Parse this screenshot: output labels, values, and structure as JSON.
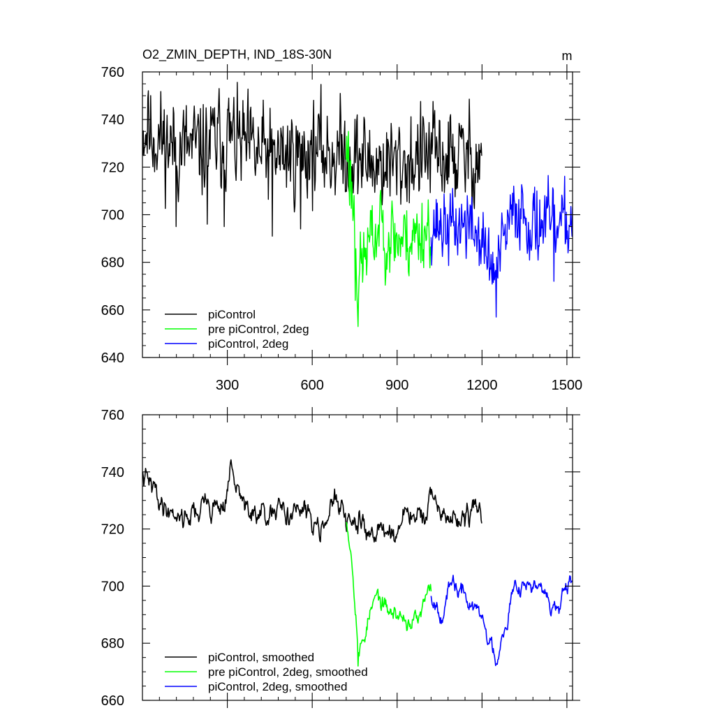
{
  "figure": {
    "title": "O2_ZMIN_DEPTH, IND_18S-30N",
    "units": "m"
  },
  "chart_data": [
    {
      "type": "line",
      "title": "O2_ZMIN_DEPTH, IND_18S-30N",
      "units": "m",
      "xlim": [
        0,
        1520
      ],
      "ylim": [
        640,
        760
      ],
      "x_ticks": [
        300,
        600,
        900,
        1200,
        1500
      ],
      "y_ticks": [
        640,
        660,
        680,
        700,
        720,
        740,
        760
      ],
      "legend_position": "bottom-left",
      "series": [
        {
          "name": "piControl",
          "color": "#000000",
          "x_range": [
            1,
            1200
          ],
          "mean": 727,
          "noise": 9.5,
          "seed": 11,
          "anchors": [
            [
              1,
              737
            ],
            [
              100,
              729
            ],
            [
              200,
              727
            ],
            [
              300,
              733
            ],
            [
              400,
              725
            ],
            [
              500,
              725
            ],
            [
              600,
              727
            ],
            [
              700,
              726
            ],
            [
              800,
              722
            ],
            [
              900,
              721
            ],
            [
              1000,
              725
            ],
            [
              1100,
              724
            ],
            [
              1200,
              724
            ]
          ],
          "spikes": [
            [
              120,
              695
            ],
            [
              230,
              696
            ],
            [
              290,
              695
            ],
            [
              460,
              691
            ],
            [
              560,
              694
            ],
            [
              305,
              749
            ],
            [
              20,
              749
            ]
          ]
        },
        {
          "name": "pre piControl, 2deg",
          "color": "#00ff00",
          "x_range": [
            720,
            1020
          ],
          "noise": 7.5,
          "seed": 23,
          "anchors": [
            [
              720,
              728
            ],
            [
              735,
              716
            ],
            [
              750,
              698
            ],
            [
              760,
              674
            ],
            [
              775,
              678
            ],
            [
              790,
              685
            ],
            [
              820,
              691
            ],
            [
              850,
              694
            ],
            [
              900,
              690
            ],
            [
              950,
              690
            ],
            [
              1000,
              694
            ],
            [
              1020,
              697
            ]
          ],
          "spikes": [
            [
              752,
              664
            ],
            [
              763,
              653
            ],
            [
              728,
              735
            ],
            [
              840,
              708
            ]
          ]
        },
        {
          "name": "piControl, 2deg",
          "color": "#0000ff",
          "x_range": [
            1020,
            1520
          ],
          "noise": 7,
          "seed": 37,
          "anchors": [
            [
              1020,
              697
            ],
            [
              1080,
              694
            ],
            [
              1140,
              696
            ],
            [
              1190,
              691
            ],
            [
              1230,
              679
            ],
            [
              1250,
              675
            ],
            [
              1280,
              690
            ],
            [
              1310,
              700
            ],
            [
              1340,
              703
            ],
            [
              1380,
              695
            ],
            [
              1420,
              697
            ],
            [
              1470,
              693
            ],
            [
              1520,
              699
            ]
          ],
          "spikes": [
            [
              1250,
              657
            ],
            [
              1395,
              710
            ],
            [
              1148,
              708
            ],
            [
              1455,
              672
            ]
          ]
        }
      ]
    },
    {
      "type": "line",
      "title": "",
      "xlim": [
        0,
        1520
      ],
      "ylim": [
        660,
        760
      ],
      "x_ticks": [
        300,
        600,
        900,
        1200,
        1500
      ],
      "y_ticks": [
        660,
        680,
        700,
        720,
        740,
        760
      ],
      "legend_position": "bottom-left",
      "series": [
        {
          "name": "piControl, smoothed",
          "color": "#000000",
          "x_range": [
            1,
            1200
          ],
          "noise": 4.5,
          "seed": 41,
          "anchors": [
            [
              1,
              738
            ],
            [
              40,
              733
            ],
            [
              80,
              728
            ],
            [
              150,
              725
            ],
            [
              220,
              728
            ],
            [
              290,
              729
            ],
            [
              310,
              741
            ],
            [
              340,
              731
            ],
            [
              400,
              724
            ],
            [
              460,
              723
            ],
            [
              530,
              728
            ],
            [
              600,
              722
            ],
            [
              680,
              729
            ],
            [
              720,
              722
            ],
            [
              800,
              720
            ],
            [
              870,
              719
            ],
            [
              950,
              724
            ],
            [
              1000,
              725
            ],
            [
              1050,
              727
            ],
            [
              1100,
              722
            ],
            [
              1150,
              725
            ],
            [
              1200,
              726
            ]
          ],
          "spikes": []
        },
        {
          "name": "pre piControl, 2deg, smoothed",
          "color": "#00ff00",
          "x_range": [
            720,
            1020
          ],
          "noise": 3.5,
          "seed": 53,
          "anchors": [
            [
              720,
              725
            ],
            [
              735,
              716
            ],
            [
              750,
              700
            ],
            [
              765,
              677
            ],
            [
              780,
              681
            ],
            [
              800,
              690
            ],
            [
              830,
              696
            ],
            [
              860,
              691
            ],
            [
              900,
              690
            ],
            [
              940,
              688
            ],
            [
              980,
              688
            ],
            [
              1000,
              694
            ],
            [
              1020,
              697
            ]
          ],
          "spikes": [
            [
              762,
              672
            ]
          ]
        },
        {
          "name": "piControl, 2deg, smoothed",
          "color": "#0000ff",
          "x_range": [
            1020,
            1520
          ],
          "noise": 3.5,
          "seed": 67,
          "anchors": [
            [
              1020,
              697
            ],
            [
              1060,
              693
            ],
            [
              1100,
              700
            ],
            [
              1160,
              694
            ],
            [
              1200,
              688
            ],
            [
              1230,
              680
            ],
            [
              1250,
              674
            ],
            [
              1270,
              685
            ],
            [
              1300,
              695
            ],
            [
              1330,
              703
            ],
            [
              1380,
              700
            ],
            [
              1420,
              696
            ],
            [
              1470,
              692
            ],
            [
              1520,
              699
            ]
          ],
          "spikes": []
        }
      ]
    }
  ]
}
